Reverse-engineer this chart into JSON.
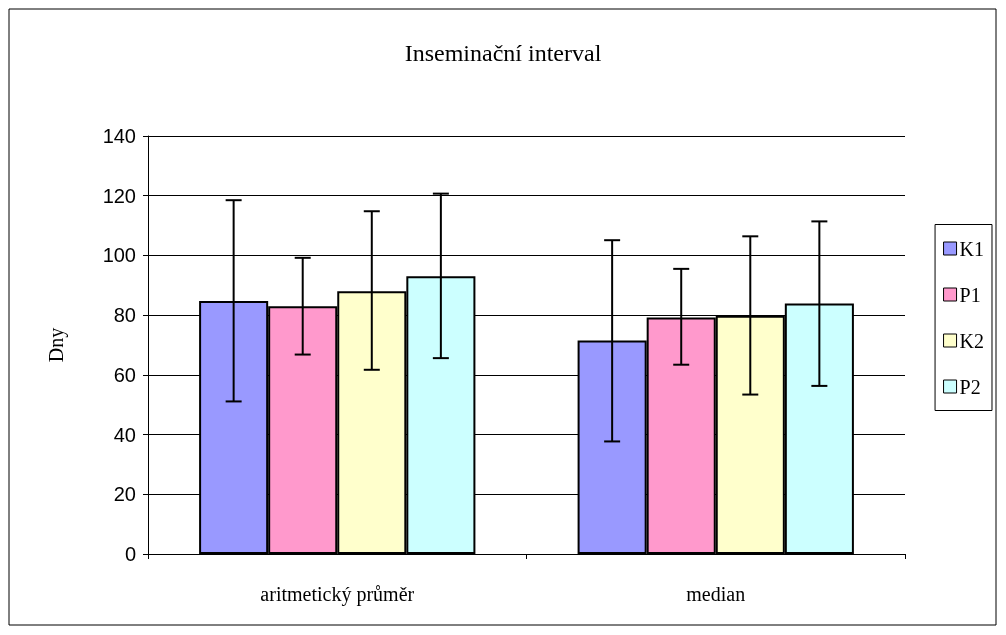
{
  "chart_data": {
    "type": "bar",
    "title": "Inseminační interval",
    "ylabel": "Dny",
    "categories": [
      "aritmetický průměr",
      "median"
    ],
    "series": [
      {
        "name": "K1",
        "color": "#9999ff",
        "values": [
          84.7,
          71.5
        ],
        "errors": [
          [
            51.1,
            118.5
          ],
          [
            37.7,
            105.1
          ]
        ]
      },
      {
        "name": "P1",
        "color": "#ff99cc",
        "values": [
          83.0,
          79.2
        ],
        "errors": [
          [
            66.8,
            99.2
          ],
          [
            63.4,
            95.5
          ]
        ]
      },
      {
        "name": "K2",
        "color": "#ffffcc",
        "values": [
          88.0,
          79.8
        ],
        "errors": [
          [
            61.7,
            114.8
          ],
          [
            53.4,
            106.4
          ]
        ]
      },
      {
        "name": "P2",
        "color": "#ccffff",
        "values": [
          93.0,
          83.9
        ],
        "errors": [
          [
            65.6,
            120.7
          ],
          [
            56.3,
            111.4
          ]
        ]
      }
    ],
    "ylim": [
      0,
      140
    ],
    "yticks": [
      0,
      20,
      40,
      60,
      80,
      100,
      120,
      140
    ],
    "grid": "y",
    "legend": "right"
  }
}
